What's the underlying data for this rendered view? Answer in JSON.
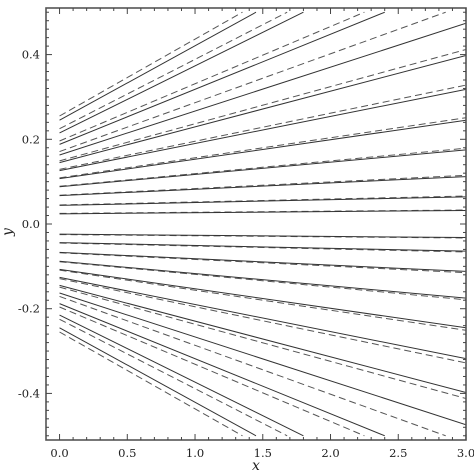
{
  "chart_data": {
    "type": "line",
    "title": "",
    "xlabel": "x",
    "ylabel": "y",
    "xlim": [
      -0.1,
      3.0
    ],
    "ylim": [
      -0.51,
      0.51
    ],
    "x_ticks": [
      "0.0",
      "0.5",
      "1.0",
      "1.5",
      "2.0",
      "2.5",
      "3.0"
    ],
    "y_ticks": [
      "0.4",
      "0.2",
      "0.0",
      "-0.2",
      "-0.4"
    ],
    "grid": false,
    "legend": "none",
    "line_styles": {
      "solid": "#333333",
      "dashed": "#555555"
    },
    "solid_series": [
      {
        "values": [
          [
            0.0,
            0.245
          ],
          [
            1.45,
            0.5
          ]
        ]
      },
      {
        "values": [
          [
            0.0,
            0.215
          ],
          [
            1.8,
            0.5
          ]
        ]
      },
      {
        "values": [
          [
            0.0,
            0.188
          ],
          [
            2.4,
            0.5
          ]
        ]
      },
      {
        "values": [
          [
            0.0,
            0.163
          ],
          [
            3.0,
            0.474
          ]
        ]
      },
      {
        "values": [
          [
            0.0,
            0.145
          ],
          [
            3.0,
            0.398
          ]
        ]
      },
      {
        "values": [
          [
            0.0,
            0.126
          ],
          [
            3.0,
            0.318
          ]
        ]
      },
      {
        "values": [
          [
            0.0,
            0.107
          ],
          [
            3.0,
            0.245
          ]
        ]
      },
      {
        "values": [
          [
            0.0,
            0.088
          ],
          [
            3.0,
            0.175
          ]
        ]
      },
      {
        "values": [
          [
            0.0,
            0.067
          ],
          [
            3.0,
            0.112
          ]
        ]
      },
      {
        "values": [
          [
            0.0,
            0.044
          ],
          [
            3.0,
            0.064
          ]
        ]
      },
      {
        "values": [
          [
            0.0,
            0.024
          ],
          [
            3.0,
            0.032
          ]
        ]
      },
      {
        "values": [
          [
            0.0,
            -0.024
          ],
          [
            3.0,
            -0.032
          ]
        ]
      },
      {
        "values": [
          [
            0.0,
            -0.044
          ],
          [
            3.0,
            -0.064
          ]
        ]
      },
      {
        "values": [
          [
            0.0,
            -0.067
          ],
          [
            3.0,
            -0.112
          ]
        ]
      },
      {
        "values": [
          [
            0.0,
            -0.088
          ],
          [
            3.0,
            -0.175
          ]
        ]
      },
      {
        "values": [
          [
            0.0,
            -0.107
          ],
          [
            3.0,
            -0.245
          ]
        ]
      },
      {
        "values": [
          [
            0.0,
            -0.126
          ],
          [
            3.0,
            -0.318
          ]
        ]
      },
      {
        "values": [
          [
            0.0,
            -0.145
          ],
          [
            3.0,
            -0.398
          ]
        ]
      },
      {
        "values": [
          [
            0.0,
            -0.163
          ],
          [
            3.0,
            -0.474
          ]
        ]
      },
      {
        "values": [
          [
            0.0,
            -0.188
          ],
          [
            2.4,
            -0.5
          ]
        ]
      },
      {
        "values": [
          [
            0.0,
            -0.215
          ],
          [
            1.8,
            -0.5
          ]
        ]
      },
      {
        "values": [
          [
            0.0,
            -0.245
          ],
          [
            1.45,
            -0.5
          ]
        ]
      }
    ],
    "dashed_series": [
      {
        "values": [
          [
            0.0,
            0.255
          ],
          [
            1.35,
            0.5
          ]
        ]
      },
      {
        "values": [
          [
            0.0,
            0.225
          ],
          [
            1.68,
            0.5
          ]
        ]
      },
      {
        "values": [
          [
            0.0,
            0.196
          ],
          [
            2.25,
            0.5
          ]
        ]
      },
      {
        "values": [
          [
            0.0,
            0.171
          ],
          [
            2.85,
            0.5
          ]
        ]
      },
      {
        "values": [
          [
            0.0,
            0.149
          ],
          [
            3.0,
            0.412
          ]
        ]
      },
      {
        "values": [
          [
            0.0,
            0.129
          ],
          [
            3.0,
            0.328
          ]
        ]
      },
      {
        "values": [
          [
            0.0,
            0.109
          ],
          [
            3.0,
            0.251
          ]
        ]
      },
      {
        "values": [
          [
            0.0,
            0.089
          ],
          [
            3.0,
            0.179
          ]
        ]
      },
      {
        "values": [
          [
            0.0,
            0.068
          ],
          [
            3.0,
            0.115
          ]
        ]
      },
      {
        "values": [
          [
            0.0,
            0.045
          ],
          [
            3.0,
            0.066
          ]
        ]
      },
      {
        "values": [
          [
            0.0,
            0.025
          ],
          [
            3.0,
            0.033
          ]
        ]
      },
      {
        "values": [
          [
            0.0,
            -0.025
          ],
          [
            3.0,
            -0.033
          ]
        ]
      },
      {
        "values": [
          [
            0.0,
            -0.045
          ],
          [
            3.0,
            -0.066
          ]
        ]
      },
      {
        "values": [
          [
            0.0,
            -0.068
          ],
          [
            3.0,
            -0.115
          ]
        ]
      },
      {
        "values": [
          [
            0.0,
            -0.089
          ],
          [
            3.0,
            -0.179
          ]
        ]
      },
      {
        "values": [
          [
            0.0,
            -0.109
          ],
          [
            3.0,
            -0.251
          ]
        ]
      },
      {
        "values": [
          [
            0.0,
            -0.129
          ],
          [
            3.0,
            -0.328
          ]
        ]
      },
      {
        "values": [
          [
            0.0,
            -0.149
          ],
          [
            3.0,
            -0.412
          ]
        ]
      },
      {
        "values": [
          [
            0.0,
            -0.171
          ],
          [
            2.85,
            -0.5
          ]
        ]
      },
      {
        "values": [
          [
            0.0,
            -0.196
          ],
          [
            2.25,
            -0.5
          ]
        ]
      },
      {
        "values": [
          [
            0.0,
            -0.225
          ],
          [
            1.68,
            -0.5
          ]
        ]
      },
      {
        "values": [
          [
            0.0,
            -0.255
          ],
          [
            1.35,
            -0.5
          ]
        ]
      }
    ]
  }
}
